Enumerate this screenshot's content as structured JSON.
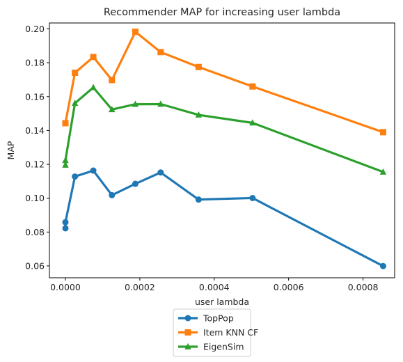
{
  "chart_data": {
    "type": "line",
    "title": "Recommender MAP for increasing user lambda",
    "xlabel": "user lambda",
    "ylabel": "MAP",
    "xlim": [
      -4.3e-05,
      0.000885
    ],
    "ylim": [
      0.053,
      0.2035
    ],
    "xticks": [
      0.0,
      0.0002,
      0.0004,
      0.0006,
      0.0008
    ],
    "xtick_labels": [
      "0.0000",
      "0.0002",
      "0.0004",
      "0.0006",
      "0.0008"
    ],
    "yticks": [
      0.06,
      0.08,
      0.1,
      0.12,
      0.14,
      0.16,
      0.18,
      0.2
    ],
    "ytick_labels": [
      "0.06",
      "0.08",
      "0.10",
      "0.12",
      "0.14",
      "0.16",
      "0.18",
      "0.20"
    ],
    "grid": false,
    "legend_position": "below plot",
    "series": [
      {
        "name": "TopPop",
        "color": "#1f77b4",
        "marker": "circle",
        "x": [
          0.0,
          0.0,
          2.56e-05,
          7.5e-05,
          0.000125,
          0.000188,
          0.000256,
          0.000358,
          0.000503,
          0.000854
        ],
        "y": [
          0.0822,
          0.0858,
          0.1128,
          0.1163,
          0.1018,
          0.1085,
          0.1152,
          0.0992,
          0.1001,
          0.0599
        ]
      },
      {
        "name": "Item KNN CF",
        "color": "#ff7f0e",
        "marker": "square",
        "x": [
          0.0,
          2.56e-05,
          7.5e-05,
          0.000125,
          0.000188,
          0.000256,
          0.000358,
          0.000503,
          0.000854
        ],
        "y": [
          0.1443,
          0.1741,
          0.1834,
          0.1698,
          0.1983,
          0.1863,
          0.1775,
          0.166,
          0.139
        ]
      },
      {
        "name": "EigenSim",
        "color": "#2ca02c",
        "marker": "triangle",
        "x": [
          0.0,
          0.0,
          2.56e-05,
          7.5e-05,
          0.000125,
          0.000188,
          0.000256,
          0.000358,
          0.000503,
          0.000854
        ],
        "y": [
          0.1196,
          0.1223,
          0.1561,
          0.1654,
          0.1524,
          0.1555,
          0.1556,
          0.1492,
          0.1445,
          0.1155
        ]
      }
    ]
  }
}
